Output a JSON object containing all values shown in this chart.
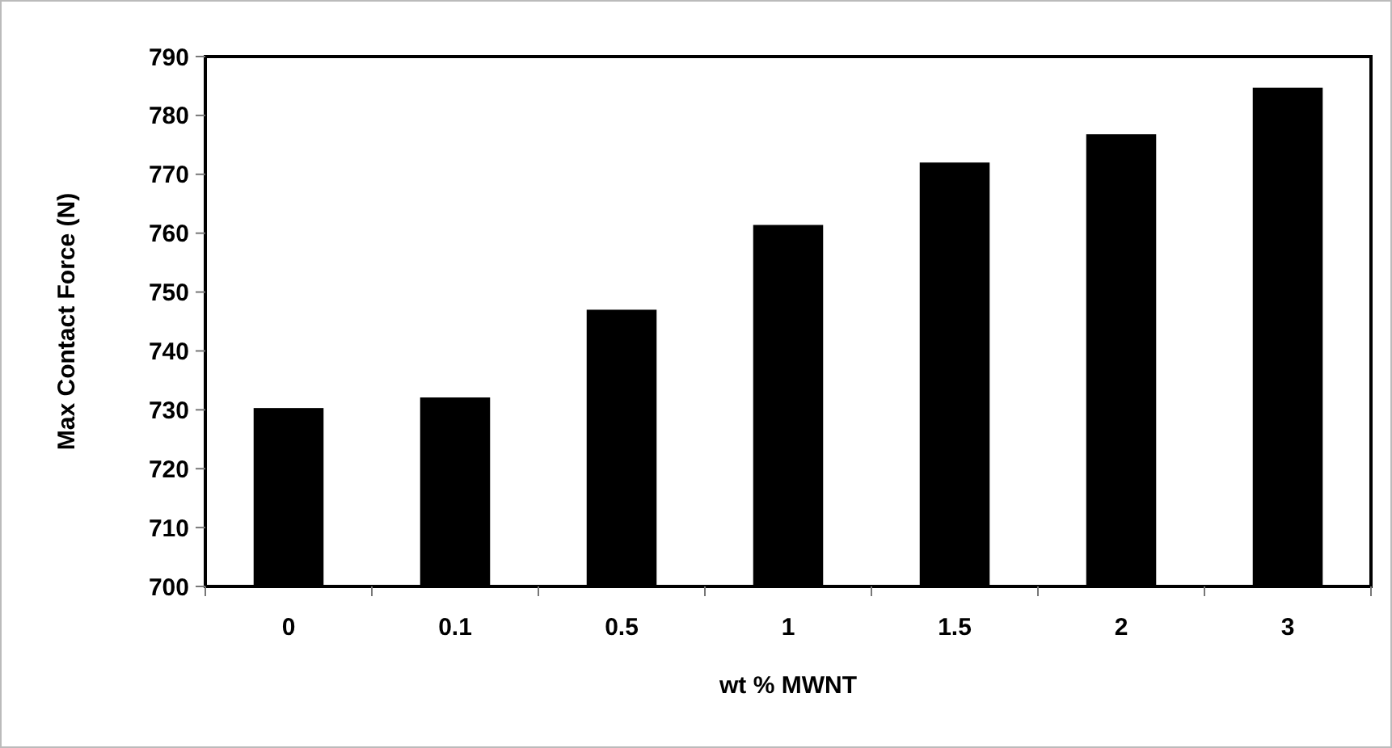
{
  "chart_data": {
    "type": "bar",
    "xlabel": "wt % MWNT",
    "ylabel": "Max Contact Force (N)",
    "categories": [
      "0",
      "0.1",
      "0.5",
      "1",
      "1.5",
      "2",
      "3"
    ],
    "values": [
      730.3,
      732.1,
      747,
      761.4,
      772,
      776.8,
      784.7
    ],
    "color": "#000000",
    "ylim": [
      700,
      790
    ],
    "yticks": [
      700,
      710,
      720,
      730,
      740,
      750,
      760,
      770,
      780,
      790
    ],
    "grid": false
  }
}
